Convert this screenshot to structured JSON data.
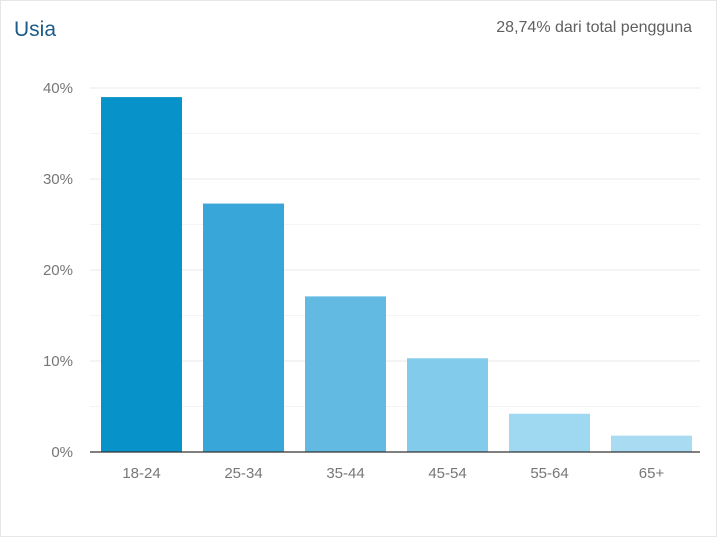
{
  "header": {
    "title": "Usia",
    "subtitle": "28,74% dari total pengguna"
  },
  "chart_data": {
    "type": "bar",
    "title": "Usia",
    "categories": [
      "18-24",
      "25-34",
      "35-44",
      "45-54",
      "55-64",
      "65+"
    ],
    "values": [
      39.0,
      27.3,
      17.1,
      10.3,
      4.2,
      1.8
    ],
    "unit": "%",
    "ylim": [
      0,
      40
    ],
    "yticks": [
      "0%",
      "10%",
      "20%",
      "30%",
      "40%"
    ],
    "grid": true,
    "bar_colors": [
      "#0792c9",
      "#38a6d8",
      "#62b9e2",
      "#83cbea",
      "#9ed8f1",
      "#a9dcf2"
    ]
  }
}
